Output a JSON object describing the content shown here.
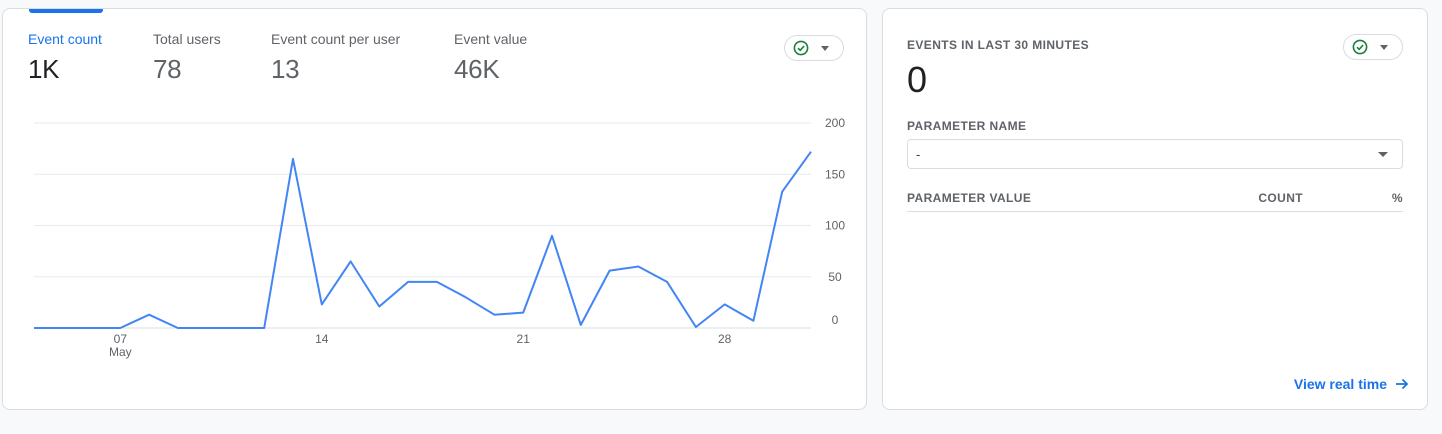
{
  "main_card": {
    "metrics": [
      {
        "label": "Event count",
        "value": "1K",
        "active": true
      },
      {
        "label": "Total users",
        "value": "78",
        "active": false
      },
      {
        "label": "Event count per user",
        "value": "13",
        "active": false
      },
      {
        "label": "Event value",
        "value": "46K",
        "active": false
      }
    ],
    "status_icon": "check-circle-icon"
  },
  "chart_data": {
    "type": "line",
    "series": [
      {
        "values": [
          0,
          0,
          0,
          0,
          13,
          0,
          0,
          0,
          0,
          165,
          23,
          65,
          21,
          45,
          45,
          30,
          13,
          15,
          90,
          3,
          56,
          60,
          45,
          1,
          23,
          7,
          133,
          172
        ]
      }
    ],
    "x_tick_labels": [
      "07",
      "14",
      "21",
      "28"
    ],
    "x_tick_index": [
      3,
      10,
      17,
      24
    ],
    "x_sublabel": "May",
    "y_ticks": [
      0,
      50,
      100,
      150,
      200
    ],
    "ylim": [
      0,
      200
    ],
    "color": "#4285f4"
  },
  "side_card": {
    "title": "EVENTS IN LAST 30 MINUTES",
    "count": "0",
    "status_icon": "check-circle-icon",
    "param_name_label": "PARAMETER NAME",
    "param_select_value": "-",
    "table_headers": {
      "value": "PARAMETER VALUE",
      "count": "COUNT",
      "pct": "%"
    },
    "link_label": "View real time"
  },
  "colors": {
    "accent": "#1a73e8",
    "status_ok": "#188038",
    "line": "#4285f4"
  }
}
